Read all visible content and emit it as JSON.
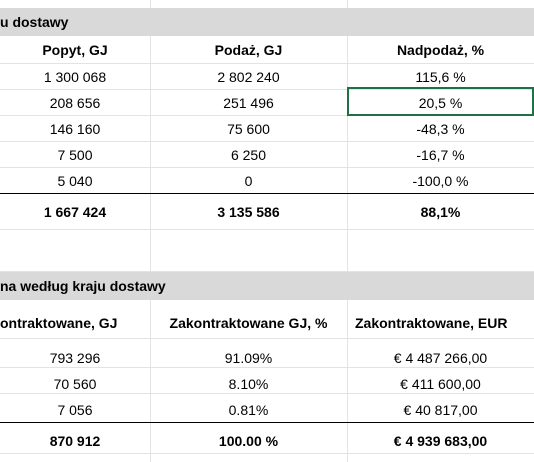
{
  "section1": {
    "title": "u dostawy",
    "headers": [
      "Popyt, GJ",
      "Podaż, GJ",
      "Nadpodaż, %"
    ],
    "rows": [
      [
        "1 300 068",
        "2 802 240",
        "115,6 %"
      ],
      [
        "208 656",
        "251 496",
        "20,5 %"
      ],
      [
        "146 160",
        "75 600",
        "-48,3 %"
      ],
      [
        "7 500",
        "6 250",
        "-16,7 %"
      ],
      [
        "5 040",
        "0",
        "-100,0 %"
      ]
    ],
    "total": [
      "1 667 424",
      "3 135 586",
      "88,1%"
    ]
  },
  "section2": {
    "title": "na według kraju dostawy",
    "headers": [
      "ontraktowane, GJ",
      "Zakontraktowane GJ, %",
      "Zakontraktowane, EUR"
    ],
    "rows": [
      [
        "793 296",
        "91.09%",
        "€ 4 487 266,00"
      ],
      [
        "70 560",
        "8.10%",
        "€ 411 600,00"
      ],
      [
        "7 056",
        "0.81%",
        "€ 40 817,00"
      ]
    ],
    "total": [
      "870 912",
      "100.00 %",
      "€ 4 939 683,00"
    ]
  },
  "selected_cell": "20,5 %",
  "colors": {
    "band": "#d9d9d9",
    "grid": "#e3e3e3",
    "selection": "#1e7145"
  }
}
